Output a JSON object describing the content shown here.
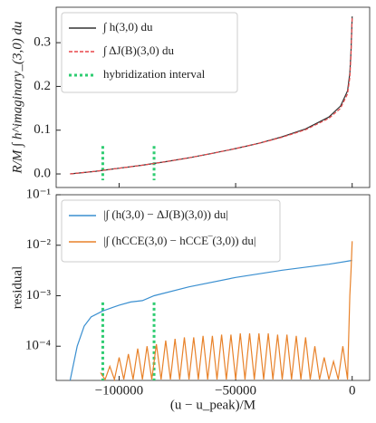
{
  "chart_data": [
    {
      "type": "line",
      "ylabel": "R/M ∫ h^imaginary_(3,0) du",
      "x": [
        -121000,
        -110000,
        -100000,
        -90000,
        -80000,
        -70000,
        -60000,
        -50000,
        -40000,
        -30000,
        -20000,
        -10000,
        -5000,
        -2000,
        -1000,
        -500,
        0
      ],
      "series": [
        {
          "name": "∫ h(3,0) du",
          "color": "#333333",
          "style": "solid",
          "values": [
            0,
            0.006,
            0.013,
            0.02,
            0.028,
            0.037,
            0.047,
            0.058,
            0.07,
            0.085,
            0.103,
            0.13,
            0.155,
            0.19,
            0.23,
            0.28,
            0.36
          ]
        },
        {
          "name": "∫ ΔJ(B)(3,0) du",
          "color": "#e8474a",
          "style": "dashed",
          "values": [
            0,
            0.006,
            0.013,
            0.02,
            0.028,
            0.037,
            0.047,
            0.058,
            0.07,
            0.084,
            0.101,
            0.127,
            0.15,
            0.183,
            0.22,
            0.27,
            0.36
          ]
        }
      ],
      "vlines": {
        "name": "hybridization interval",
        "color": "#2ecc71",
        "x": [
          -107000,
          -85000
        ]
      },
      "xlim": [
        -127000,
        7500
      ],
      "xticks": [
        -100000,
        -50000,
        0
      ],
      "show_xtick_labels": false,
      "ylim": [
        -0.031,
        0.381
      ],
      "yticks": [
        {
          "value": 0,
          "label": "0.0"
        },
        0.1,
        0.2,
        0.3
      ],
      "legend": "upper left"
    },
    {
      "type": "line",
      "log_y": true,
      "ylabel": "residual",
      "xlabel": "(u − u_peak)/M",
      "series": [
        {
          "name": "|∫ (h(3,0) − ΔJ(B)(3,0)) du|",
          "color": "#3a8fd0",
          "x": [
            -121000,
            -118000,
            -115000,
            -112000,
            -107000,
            -100000,
            -95000,
            -90000,
            -85000,
            -70000,
            -50000,
            -30000,
            -10000,
            0
          ],
          "values": [
            2.1e-05,
            0.0001,
            0.00025,
            0.00038,
            0.0005,
            0.00065,
            0.00075,
            0.0008,
            0.001,
            0.0015,
            0.0023,
            0.0032,
            0.0042,
            0.005
          ]
        },
        {
          "name": "|∫ (hCCE(3,0) − hCCE‾(3,0)) du|",
          "color": "#e8822a",
          "x": [
            -108000,
            -106000,
            -104000,
            -102000,
            -100000,
            -98000,
            -96000,
            -94000,
            -92000,
            -90000,
            -88000,
            -86000,
            -84000,
            -82000,
            -80000,
            -78000,
            -76000,
            -74000,
            -72000,
            -70000,
            -68000,
            -66000,
            -64000,
            -62000,
            -60000,
            -58000,
            -56000,
            -54000,
            -52000,
            -50000,
            -48000,
            -46000,
            -44000,
            -42000,
            -40000,
            -38000,
            -36000,
            -34000,
            -32000,
            -30000,
            -28000,
            -26000,
            -24000,
            -22000,
            -20000,
            -18000,
            -16000,
            -14000,
            -12000,
            -10000,
            -8000,
            -6000,
            -4000,
            -2000,
            -1000,
            -500,
            0
          ],
          "values": [
            3e-05,
            2.2e-05,
            4e-05,
            2.2e-05,
            6e-05,
            2.2e-05,
            7e-05,
            2.2e-05,
            9e-05,
            2.2e-05,
            0.0001,
            2.2e-05,
            0.00011,
            2.2e-05,
            0.00013,
            2.2e-05,
            0.00014,
            2.2e-05,
            0.00015,
            2.2e-05,
            0.00015,
            2.2e-05,
            0.00016,
            2.2e-05,
            0.00016,
            2.2e-05,
            0.00017,
            2.2e-05,
            0.00017,
            2.2e-05,
            0.00018,
            2.2e-05,
            0.00018,
            2.2e-05,
            0.00018,
            2.2e-05,
            0.00018,
            2.2e-05,
            0.00017,
            2.2e-05,
            0.00017,
            2.2e-05,
            0.00016,
            2.2e-05,
            0.00015,
            2.2e-05,
            0.0001,
            2.2e-05,
            6e-05,
            2.2e-05,
            5e-05,
            2.2e-05,
            0.0001,
            2.2e-05,
            0.001,
            0.003,
            0.012
          ]
        }
      ],
      "vlines": {
        "color": "#2ecc71",
        "x": [
          -107000,
          -85000
        ]
      },
      "xlim": [
        -127000,
        7500
      ],
      "xticks": [
        {
          "value": -100000,
          "label": "−100000"
        },
        {
          "value": -50000,
          "label": "−50000"
        },
        0
      ],
      "ylim": [
        2.1e-05,
        0.1
      ],
      "yticks": [
        {
          "value": 0.0001,
          "label": "10⁻⁴"
        },
        {
          "value": 0.001,
          "label": "10⁻³"
        },
        {
          "value": 0.01,
          "label": "10⁻²"
        },
        {
          "value": 0.1,
          "label": "10⁻¹"
        }
      ],
      "legend": "upper left"
    }
  ]
}
